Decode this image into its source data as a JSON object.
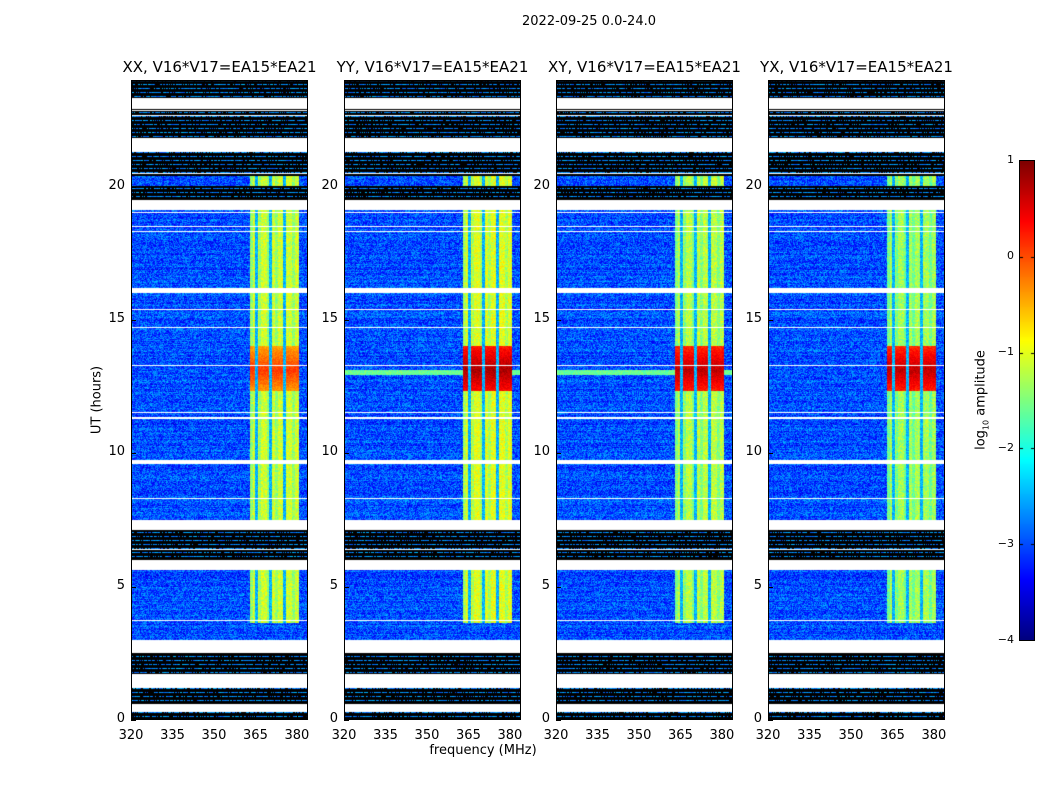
{
  "title": "2022-09-25 0.0-24.0",
  "chart_data": {
    "type": "heatmap",
    "title": "2022-09-25 0.0-24.0",
    "xlabel": "frequency (MHz)",
    "ylabel": "UT (hours)",
    "xlim": [
      320,
      384
    ],
    "ylim": [
      0,
      24
    ],
    "xticks": [
      "320",
      "335",
      "350",
      "365",
      "380"
    ],
    "yticks": [
      "0",
      "5",
      "10",
      "15",
      "20"
    ],
    "panels": [
      {
        "title": "XX, V16*V17=EA15*EA21",
        "burst_level": 0.1,
        "band_level": -1.1
      },
      {
        "title": "YY, V16*V17=EA15*EA21",
        "burst_level": 0.8,
        "band_level": -1.0
      },
      {
        "title": "XY, V16*V17=EA15*EA21",
        "burst_level": 0.7,
        "band_level": -1.2
      },
      {
        "title": "YX, V16*V17=EA15*EA21",
        "burst_level": 0.7,
        "band_level": -1.3
      }
    ],
    "background_level": -3.0,
    "bright_band_MHz": [
      363,
      380.5
    ],
    "subband_gaps_MHz": [
      365.2,
      370.3,
      375.3
    ],
    "band_start_hour": 3.6,
    "burst_hours": [
      12.3,
      14.0
    ],
    "flagged_white_hours": [
      [
        22.9,
        23.3
      ],
      [
        21.3,
        21.8
      ],
      [
        19.1,
        19.5
      ],
      [
        16.0,
        16.2
      ],
      [
        9.6,
        9.75
      ],
      [
        7.1,
        7.5
      ],
      [
        5.6,
        6.0
      ],
      [
        2.5,
        3.0
      ],
      [
        1.2,
        1.7
      ],
      [
        0.3,
        0.6
      ]
    ],
    "blank_black_hours": [
      [
        23.3,
        24
      ],
      [
        21.8,
        22.9
      ],
      [
        20.4,
        21.3
      ],
      [
        19.5,
        20.0
      ],
      [
        6.0,
        7.1
      ],
      [
        1.7,
        2.5
      ],
      [
        0.6,
        1.2
      ],
      [
        0,
        0.3
      ]
    ],
    "colorbar": {
      "label": "log10 amplitude",
      "label_main": "log",
      "label_sub": "10",
      "label_rest": " amplitude",
      "range": [
        -4,
        1
      ],
      "ticks": [
        "1",
        "0",
        "−1",
        "−2",
        "−3",
        "−4"
      ],
      "colormap": "jet"
    }
  }
}
